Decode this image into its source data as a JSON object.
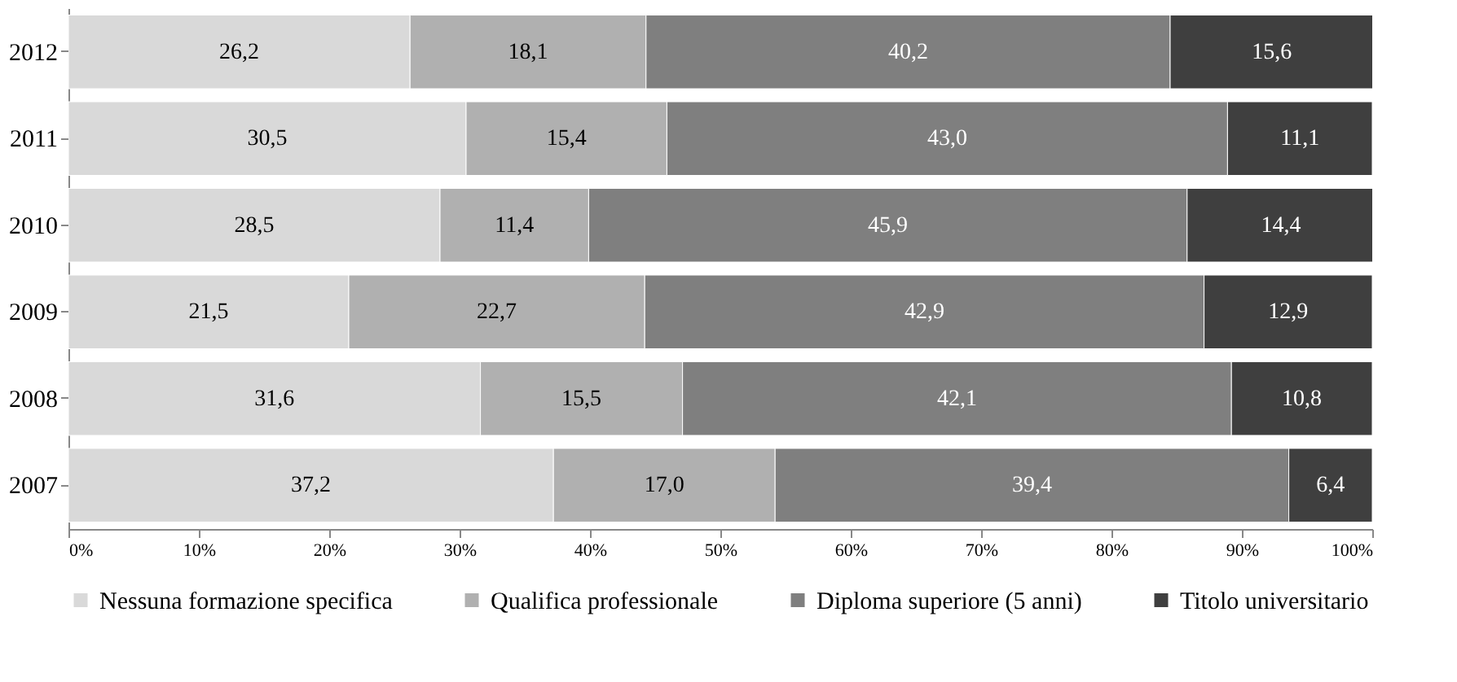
{
  "chart_data": {
    "type": "bar",
    "orientation": "horizontal",
    "stacked": true,
    "categories": [
      "2012",
      "2011",
      "2010",
      "2009",
      "2008",
      "2007"
    ],
    "series": [
      {
        "name": "Nessuna formazione specifica",
        "color": "#d9d9d9",
        "values": [
          26.2,
          30.5,
          28.5,
          21.5,
          31.6,
          37.2
        ],
        "value_labels": [
          "26,2",
          "30,5",
          "28,5",
          "21,5",
          "31,6",
          "37,2"
        ]
      },
      {
        "name": "Qualifica professionale",
        "color": "#b0b0b0",
        "values": [
          18.1,
          15.4,
          11.4,
          22.7,
          15.5,
          17.0
        ],
        "value_labels": [
          "18,1",
          "15,4",
          "11,4",
          "22,7",
          "15,5",
          "17,0"
        ]
      },
      {
        "name": "Diploma superiore (5 anni)",
        "color": "#7f7f7f",
        "values": [
          40.2,
          43.0,
          45.9,
          42.9,
          42.1,
          39.4
        ],
        "value_labels": [
          "40,2",
          "43,0",
          "45,9",
          "42,9",
          "42,1",
          "39,4"
        ]
      },
      {
        "name": "Titolo universitario",
        "color": "#3f3f3f",
        "values": [
          15.6,
          11.1,
          14.4,
          12.9,
          10.8,
          6.4
        ],
        "value_labels": [
          "15,6",
          "11,1",
          "14,4",
          "12,9",
          "10,8",
          "6,4"
        ]
      }
    ],
    "xlim": [
      0,
      100
    ],
    "xticks": [
      {
        "value": 0,
        "label": "0%"
      },
      {
        "value": 10,
        "label": "10%"
      },
      {
        "value": 20,
        "label": "20%"
      },
      {
        "value": 30,
        "label": "30%"
      },
      {
        "value": 40,
        "label": "40%"
      },
      {
        "value": 50,
        "label": "50%"
      },
      {
        "value": 60,
        "label": "60%"
      },
      {
        "value": 70,
        "label": "70%"
      },
      {
        "value": 80,
        "label": "80%"
      },
      {
        "value": 90,
        "label": "90%"
      },
      {
        "value": 100,
        "label": "100%"
      }
    ],
    "grid": false,
    "legend": "bottom"
  }
}
